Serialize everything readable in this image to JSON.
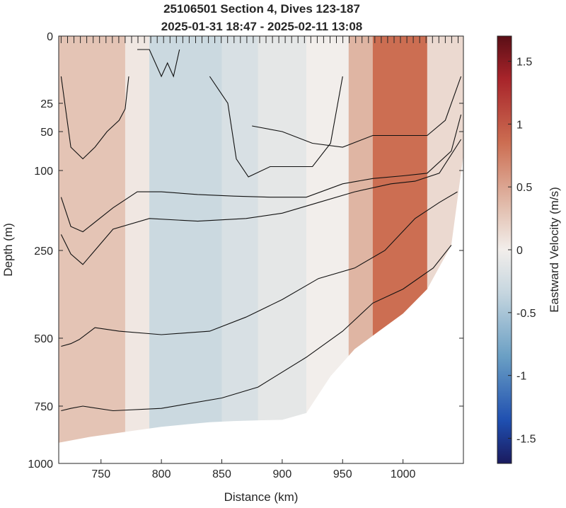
{
  "chart_data": {
    "type": "heatmap",
    "title": "25106501 Section 4, Dives 123-187",
    "subtitle": "2025-01-31 18:47 - 2025-02-11 13:08",
    "xlabel": "Distance (km)",
    "ylabel": "Depth (m)",
    "xlim": [
      715,
      1050
    ],
    "x_ticks": [
      "750",
      "800",
      "850",
      "900",
      "950",
      "1000"
    ],
    "y_ticks": [
      "0",
      "25",
      "50",
      "100",
      "250",
      "500",
      "750",
      "1000"
    ],
    "y_tick_values": [
      0,
      25,
      50,
      100,
      250,
      500,
      750,
      1000
    ],
    "y_scale": "nonlinear (stretched near surface)",
    "colorbar": {
      "label": "Eastward Velocity (m/s)",
      "range": [
        -1.7,
        1.7
      ],
      "ticks": [
        "-1.5",
        "-1",
        "-0.5",
        "0",
        "0.5",
        "1",
        "1.5"
      ],
      "tick_values": [
        -1.5,
        -1,
        -0.5,
        0,
        0.5,
        1,
        1.5
      ],
      "colormap": "diverging blue-white-red"
    },
    "bottom_depth_profile": {
      "distance_km": [
        715,
        740,
        760,
        780,
        800,
        820,
        840,
        860,
        880,
        900,
        920,
        940,
        960,
        980,
        1000,
        1020,
        1040,
        1050
      ],
      "depth_m": [
        910,
        885,
        870,
        855,
        840,
        830,
        820,
        815,
        812,
        810,
        780,
        640,
        540,
        480,
        430,
        360,
        240,
        80
      ]
    },
    "velocity_bands": [
      {
        "x_start": 715,
        "x_end": 770,
        "velocity": 0.3
      },
      {
        "x_start": 770,
        "x_end": 790,
        "velocity": 0.05
      },
      {
        "x_start": 790,
        "x_end": 850,
        "velocity": -0.3
      },
      {
        "x_start": 850,
        "x_end": 880,
        "velocity": -0.2
      },
      {
        "x_start": 880,
        "x_end": 920,
        "velocity": -0.1
      },
      {
        "x_start": 920,
        "x_end": 955,
        "velocity": 0.0
      },
      {
        "x_start": 955,
        "x_end": 975,
        "velocity": 0.4
      },
      {
        "x_start": 975,
        "x_end": 1020,
        "velocity": 0.85
      },
      {
        "x_start": 1020,
        "x_end": 1050,
        "velocity": 0.15
      }
    ],
    "contours": [
      {
        "x": [
          717,
          725,
          735,
          745,
          755,
          765,
          770,
          773
        ],
        "depth": [
          15,
          70,
          85,
          70,
          50,
          40,
          30,
          15
        ]
      },
      {
        "x": [
          780,
          785,
          790,
          800,
          805,
          810,
          815
        ],
        "depth": [
          5,
          5,
          5,
          15,
          10,
          15,
          5
        ]
      },
      {
        "x": [
          840,
          855,
          862,
          872,
          890,
          910,
          925,
          940,
          950
        ],
        "depth": [
          15,
          25,
          85,
          112,
          95,
          95,
          95,
          65,
          15
        ]
      },
      {
        "x": [
          875,
          900,
          925,
          950,
          975,
          1000,
          1020,
          1035,
          1048
        ],
        "depth": [
          45,
          50,
          65,
          70,
          55,
          55,
          55,
          40,
          15
        ]
      },
      {
        "x": [
          717,
          725,
          735,
          760,
          780,
          800,
          830,
          860,
          890,
          920,
          950,
          975,
          1000,
          1020,
          1040,
          1048
        ],
        "depth": [
          150,
          205,
          215,
          170,
          140,
          140,
          145,
          148,
          150,
          150,
          125,
          115,
          110,
          105,
          75,
          35
        ]
      },
      {
        "x": [
          717,
          725,
          735,
          760,
          790,
          830,
          870,
          900,
          930,
          960,
          990,
          1010,
          1030,
          1048
        ],
        "depth": [
          220,
          260,
          290,
          210,
          190,
          195,
          190,
          180,
          160,
          140,
          125,
          120,
          105,
          60
        ]
      },
      {
        "x": [
          717,
          725,
          732,
          745,
          765,
          800,
          840,
          870,
          900,
          930,
          960,
          985,
          1010,
          1030,
          1045
        ],
        "depth": [
          530,
          520,
          505,
          470,
          480,
          490,
          480,
          440,
          390,
          330,
          300,
          250,
          190,
          160,
          140
        ]
      },
      {
        "x": [
          717,
          725,
          735,
          760,
          800,
          850,
          880,
          920,
          950,
          975,
          1000,
          1025,
          1040
        ],
        "depth": [
          770,
          760,
          750,
          770,
          760,
          720,
          680,
          570,
          480,
          400,
          360,
          300,
          240
        ]
      }
    ]
  }
}
